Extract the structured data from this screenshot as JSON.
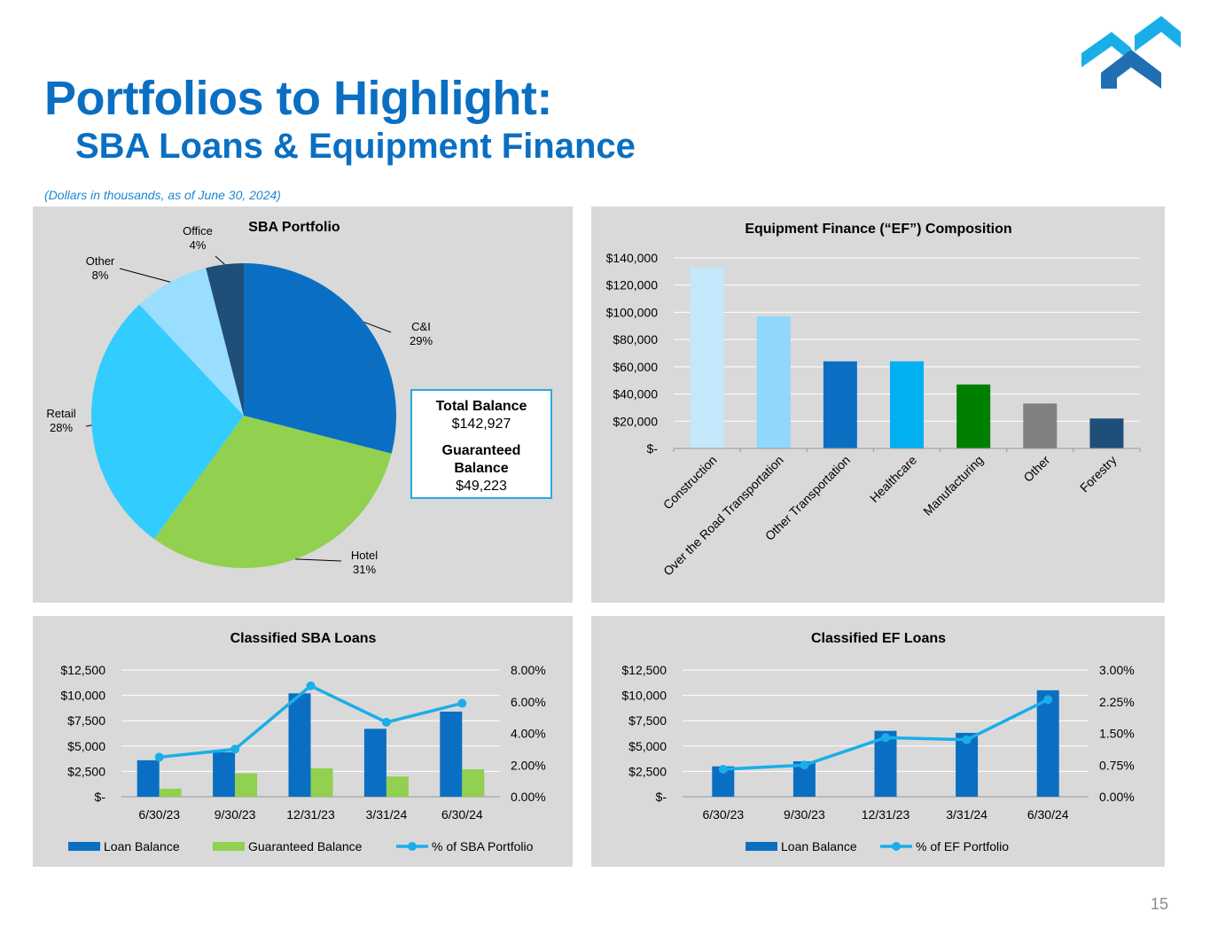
{
  "header": {
    "title": "Portfolios to Highlight:",
    "subtitle": "SBA Loans & Equipment Finance",
    "note": "(Dollars in thousands, as of June 30, 2024)",
    "page_number": "15"
  },
  "colors": {
    "brand_blue": "#0a6fc2",
    "panel_bg": "#d9d9d9",
    "loan_bar": "#0a6fc2",
    "guaranteed_bar": "#92d050",
    "pct_line": "#1aaee8"
  },
  "sba_box": {
    "total_label": "Total Balance",
    "total_value": "$142,927",
    "guaranteed_label": "Guaranteed Balance",
    "guaranteed_value": "$49,223"
  },
  "chart_data": [
    {
      "type": "pie",
      "title": "SBA Portfolio",
      "slices": [
        {
          "label": "C&I",
          "pct_label": "29%",
          "value": 29,
          "color": "#0a6fc2"
        },
        {
          "label": "Hotel",
          "pct_label": "31%",
          "value": 31,
          "color": "#92d050"
        },
        {
          "label": "Retail",
          "pct_label": "28%",
          "value": 28,
          "color": "#33ccff"
        },
        {
          "label": "Other",
          "pct_label": "8%",
          "value": 8,
          "color": "#99ddff"
        },
        {
          "label": "Office",
          "pct_label": "4%",
          "value": 4,
          "color": "#1f4e79"
        }
      ]
    },
    {
      "type": "bar",
      "title": "Equipment Finance (“EF”) Composition",
      "categories": [
        "Construction",
        "Over the Road Transportation",
        "Other Transportation",
        "Healthcare",
        "Manufacturing",
        "Other",
        "Forestry"
      ],
      "values": [
        133000,
        97000,
        64000,
        64000,
        47000,
        33000,
        22000
      ],
      "colors": [
        "#c5e7fb",
        "#8fd8fb",
        "#0a6fc2",
        "#00b0f0",
        "#008000",
        "#808080",
        "#1f4e79"
      ],
      "ylim": [
        0,
        140000
      ],
      "yticks": [
        "$-",
        "$20,000",
        "$40,000",
        "$60,000",
        "$80,000",
        "$100,000",
        "$120,000",
        "$140,000"
      ],
      "grid": true
    },
    {
      "type": "bar",
      "title": "Classified SBA Loans",
      "categories": [
        "6/30/23",
        "9/30/23",
        "12/31/23",
        "3/31/24",
        "6/30/24"
      ],
      "series": [
        {
          "name": "Loan Balance",
          "values": [
            3600,
            4400,
            10200,
            6700,
            8400
          ]
        },
        {
          "name": "Guaranteed Balance",
          "values": [
            800,
            2300,
            2800,
            2000,
            2700
          ]
        },
        {
          "name": "% of SBA Portfolio",
          "values": [
            2.5,
            3.0,
            7.0,
            4.7,
            5.9
          ],
          "axis": "secondary",
          "type": "line"
        }
      ],
      "ylim": [
        0,
        12500
      ],
      "y2lim": [
        0,
        8
      ],
      "yticks": [
        "$-",
        "$2,500",
        "$5,000",
        "$7,500",
        "$10,000",
        "$12,500"
      ],
      "y2ticks": [
        "0.00%",
        "2.00%",
        "4.00%",
        "6.00%",
        "8.00%"
      ],
      "legend": "bottom"
    },
    {
      "type": "bar",
      "title": "Classified EF Loans",
      "categories": [
        "6/30/23",
        "9/30/23",
        "12/31/23",
        "3/31/24",
        "6/30/24"
      ],
      "series": [
        {
          "name": "Loan Balance",
          "values": [
            3000,
            3500,
            6500,
            6300,
            10500
          ]
        },
        {
          "name": "% of EF Portfolio",
          "values": [
            0.65,
            0.75,
            1.4,
            1.35,
            2.3
          ],
          "axis": "secondary",
          "type": "line"
        }
      ],
      "ylim": [
        0,
        12500
      ],
      "y2lim": [
        0,
        3
      ],
      "yticks": [
        "$-",
        "$2,500",
        "$5,000",
        "$7,500",
        "$10,000",
        "$12,500"
      ],
      "y2ticks": [
        "0.00%",
        "0.75%",
        "1.50%",
        "2.25%",
        "3.00%"
      ],
      "legend": "bottom"
    }
  ]
}
